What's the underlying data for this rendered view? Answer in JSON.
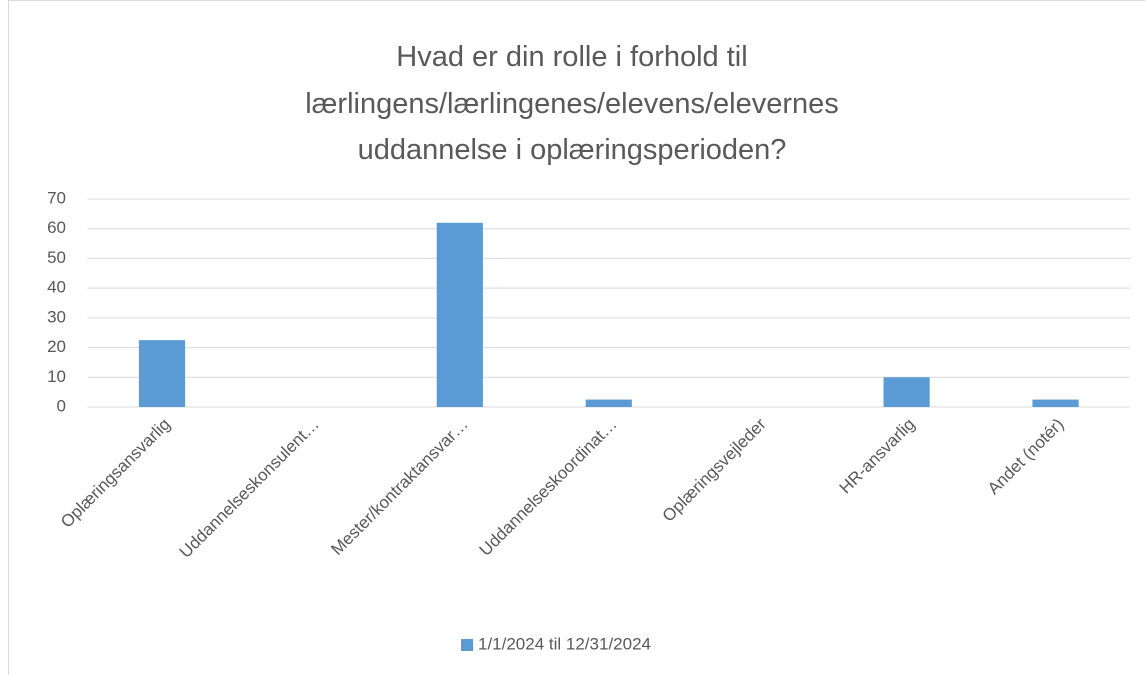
{
  "chart_data": {
    "type": "bar",
    "title": "Hvad er din rolle i forhold til lærlingens/lærlingenes/elevens/elevernes uddannelse i oplæringsperioden?",
    "categories": [
      "Oplæringsansvarlig",
      "Uddannelseskonsulent…",
      "Mester/kontraktansvar…",
      "Uddannelseskoordinat…",
      "Oplæringsvejleder",
      "HR-ansvarlig",
      "Andet (notér)"
    ],
    "series": [
      {
        "name": "1/1/2024 til 12/31/2024",
        "color": "#5b9bd5",
        "values": [
          22.5,
          0,
          62,
          2.5,
          0,
          10,
          2.5
        ]
      }
    ],
    "ylim": [
      0,
      70
    ],
    "yticks": [
      0,
      10,
      20,
      30,
      40,
      50,
      60,
      70
    ],
    "grid": true,
    "legend": "bottom"
  }
}
